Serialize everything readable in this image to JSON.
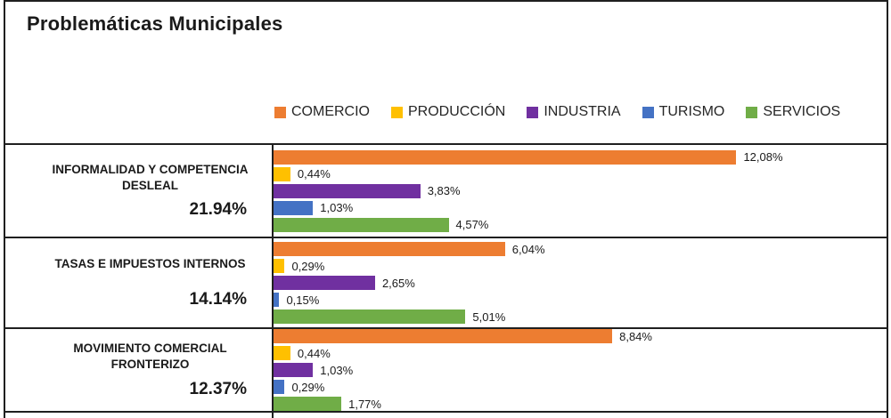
{
  "title": "Problemáticas Municipales",
  "legend": [
    {
      "label": "COMERCIO",
      "color": "#ED7D31",
      "marker": "square-icon"
    },
    {
      "label": "PRODUCCIÓN",
      "color": "#FFC000",
      "marker": "square-icon"
    },
    {
      "label": "INDUSTRIA",
      "color": "#7030A0",
      "marker": "square-icon"
    },
    {
      "label": "TURISMO",
      "color": "#4472C4",
      "marker": "square-icon"
    },
    {
      "label": "SERVICIOS",
      "color": "#70AD47",
      "marker": "square-icon"
    }
  ],
  "chart_data": {
    "type": "bar",
    "orientation": "horizontal",
    "title": "Problemáticas Municipales",
    "legend_position": "top",
    "grid": false,
    "axis_max_percent": 16,
    "series_names": [
      "COMERCIO",
      "PRODUCCIÓN",
      "INDUSTRIA",
      "TURISMO",
      "SERVICIOS"
    ],
    "series_colors": [
      "#ED7D31",
      "#FFC000",
      "#7030A0",
      "#4472C4",
      "#70AD47"
    ],
    "categories": [
      {
        "name": "INFORMALIDAD Y COMPETENCIA DESLEAL",
        "name_lines": [
          "INFORMALIDAD Y COMPETENCIA",
          "DESLEAL"
        ],
        "total_label": "21.94%",
        "total_value": 21.94,
        "values": [
          12.08,
          0.44,
          3.83,
          1.03,
          4.57
        ],
        "value_labels": [
          "12,08%",
          "0,44%",
          "3,83%",
          "1,03%",
          "4,57%"
        ]
      },
      {
        "name": "TASAS E IMPUESTOS INTERNOS",
        "name_lines": [
          "TASAS E IMPUESTOS INTERNOS"
        ],
        "total_label": "14.14%",
        "total_value": 14.14,
        "values": [
          6.04,
          0.29,
          2.65,
          0.15,
          5.01
        ],
        "value_labels": [
          "6,04%",
          "0,29%",
          "2,65%",
          "0,15%",
          "5,01%"
        ]
      },
      {
        "name": "MOVIMIENTO COMERCIAL FRONTERIZO",
        "name_lines": [
          "MOVIMIENTO COMERCIAL",
          "FRONTERIZO"
        ],
        "total_label": "12.37%",
        "total_value": 12.37,
        "values": [
          8.84,
          0.44,
          1.03,
          0.29,
          1.77
        ],
        "value_labels": [
          "8,84%",
          "0,44%",
          "1,03%",
          "0,29%",
          "1,77%"
        ]
      }
    ]
  }
}
